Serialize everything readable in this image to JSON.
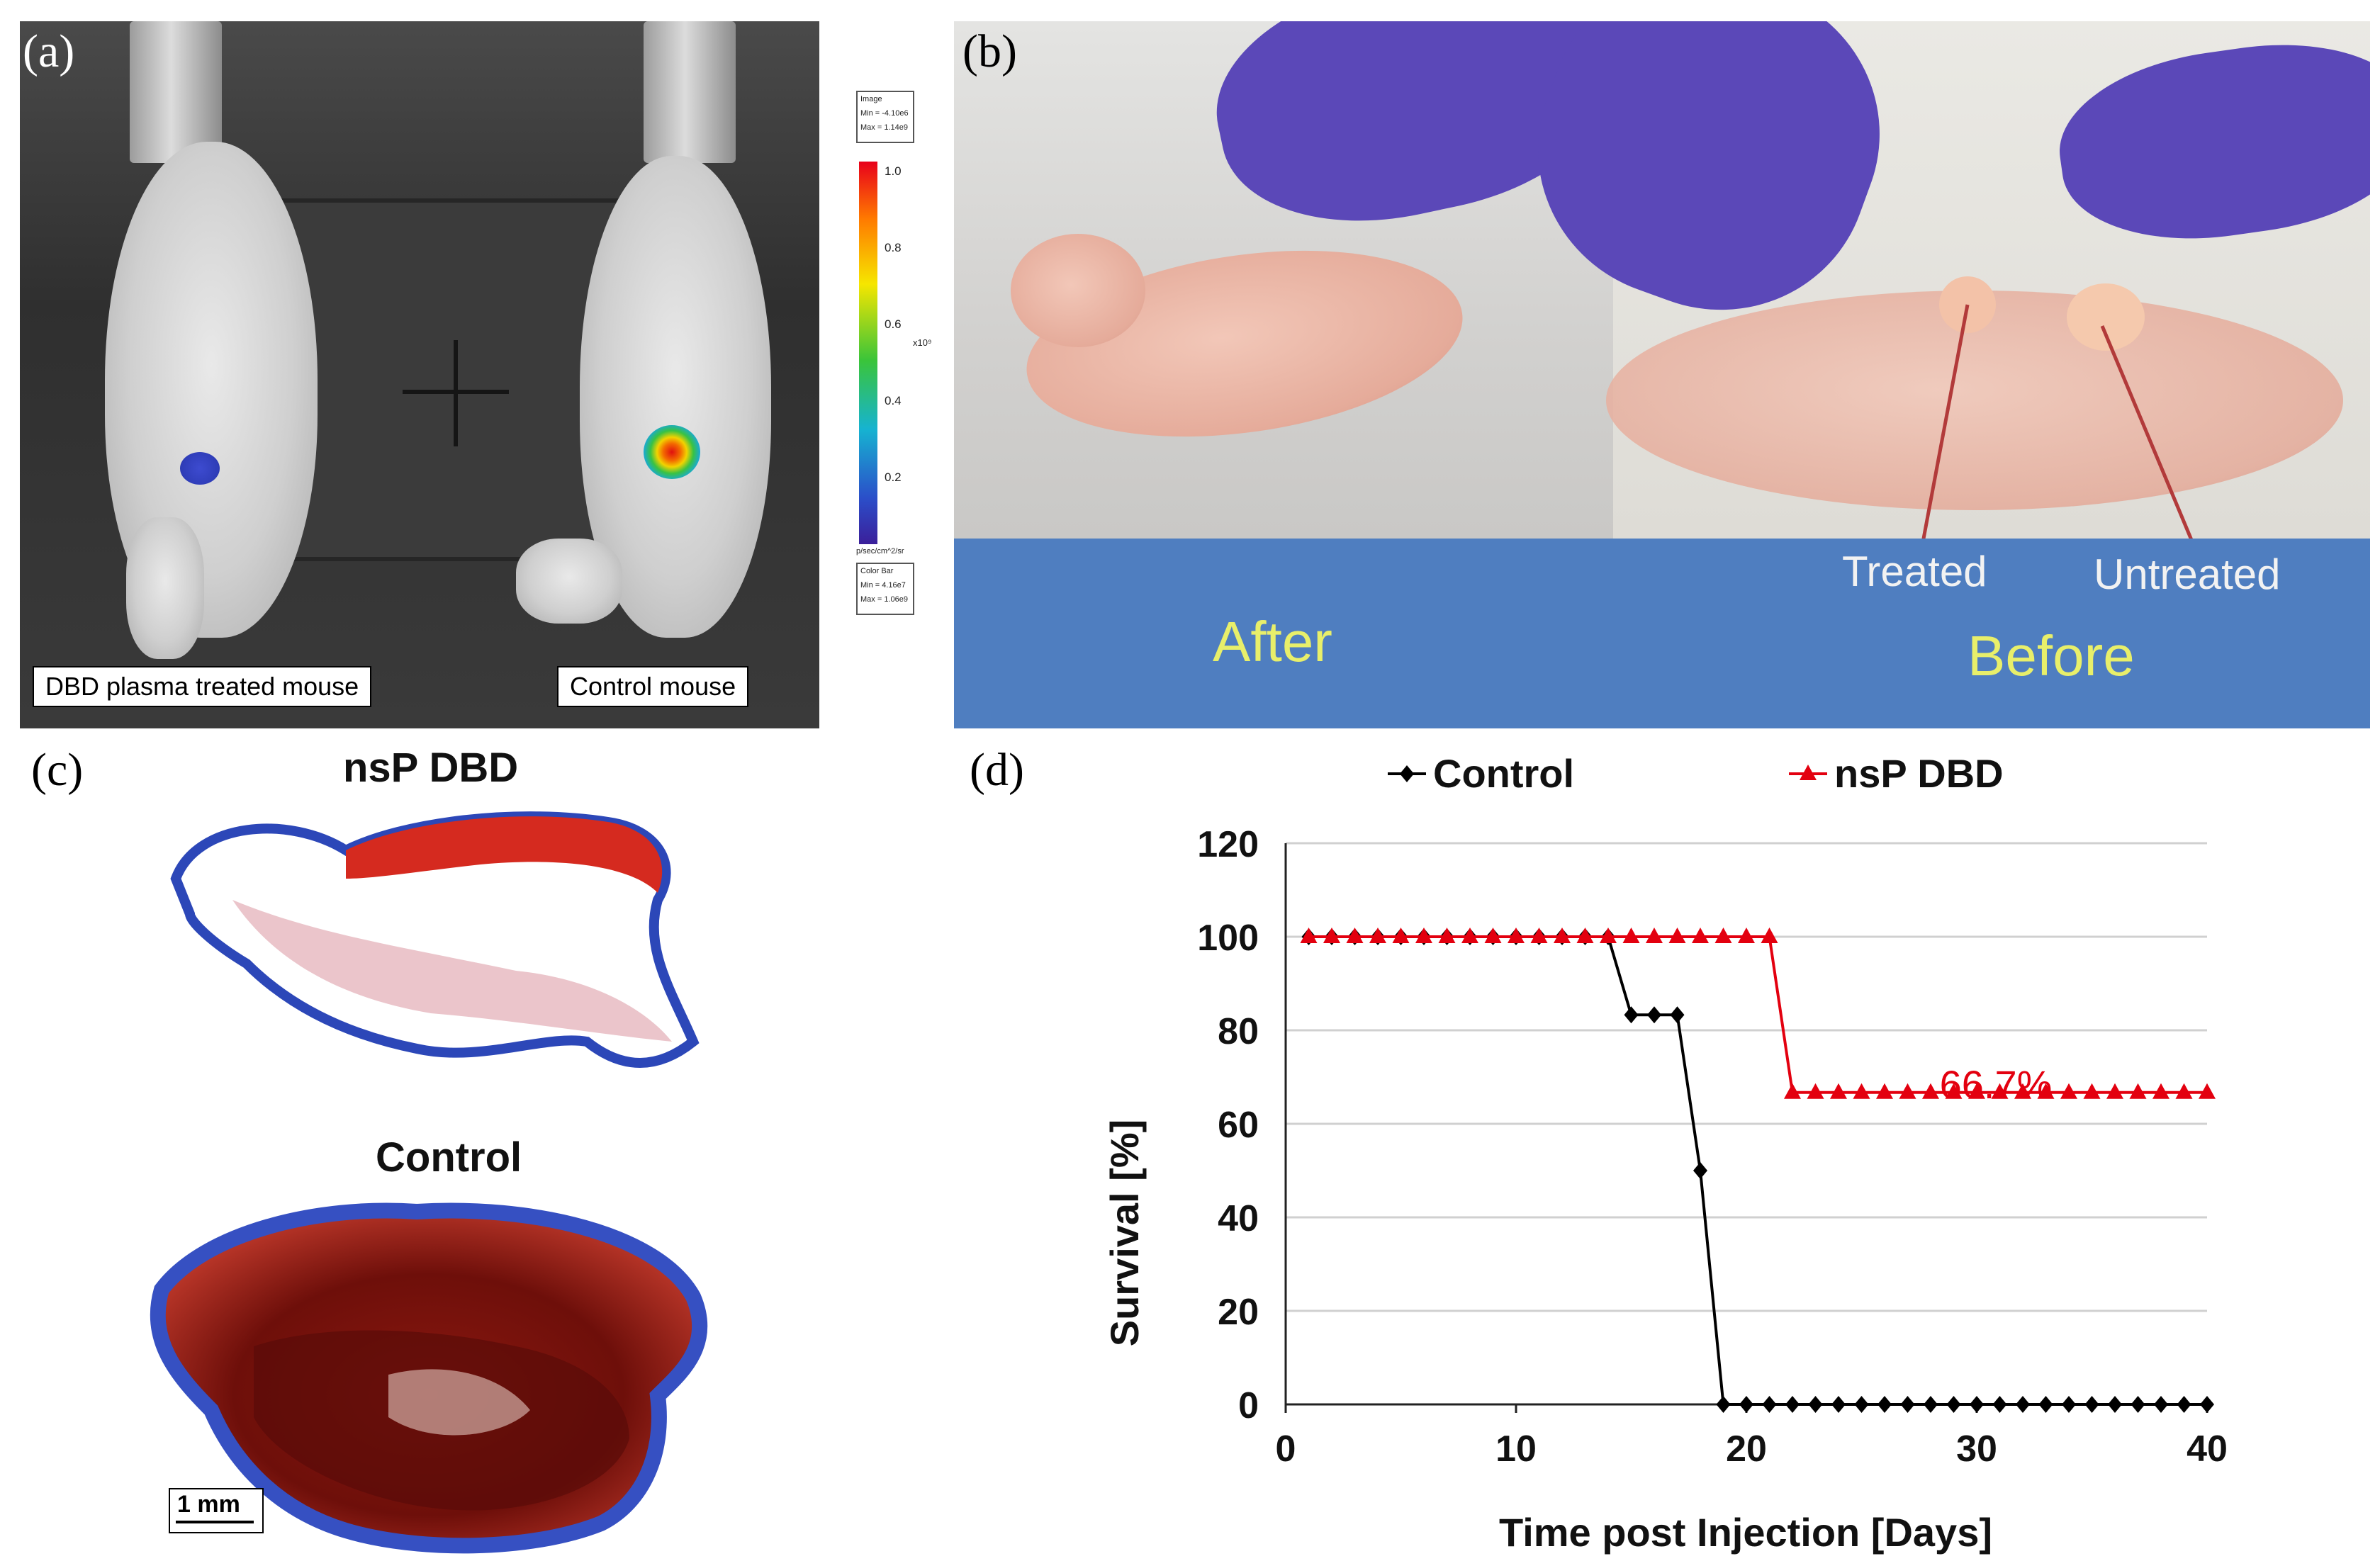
{
  "panels": {
    "a": {
      "letter": "(a)",
      "left_label": "DBD plasma treated mouse",
      "right_label": "Control mouse",
      "colorbar": {
        "ticks": [
          "1.0",
          "0.8",
          "0.6",
          "0.4",
          "0.2"
        ],
        "exponent": "x10⁹",
        "unit": "p/sec/cm^2/sr",
        "top_box": [
          "Image",
          "Min = -4.10e6",
          "Max = 1.14e9"
        ],
        "bottom_box": [
          "Color Bar",
          "Min = 4.16e7",
          "Max = 1.06e9"
        ]
      }
    },
    "b": {
      "letter": "(b)",
      "after": "After",
      "before": "Before",
      "treated": "Treated",
      "untreated": "Untreated"
    },
    "c": {
      "letter": "(c)",
      "top_title": "nsP DBD",
      "bottom_title": "Control",
      "scale": "1 mm"
    },
    "d": {
      "letter": "(d)",
      "annotation": "66.7%"
    }
  },
  "chart_data": {
    "type": "line",
    "xlabel": "Time post Injection [Days]",
    "ylabel": "Survival [%]",
    "xlim": [
      0,
      40
    ],
    "ylim": [
      0,
      120
    ],
    "xticks": [
      0,
      10,
      20,
      30,
      40
    ],
    "yticks": [
      0,
      20,
      40,
      60,
      80,
      100,
      120
    ],
    "grid": "horizontal",
    "legend": "top",
    "series": [
      {
        "name": "Control",
        "color": "#000000",
        "marker": "diamond",
        "x": [
          1,
          2,
          3,
          4,
          5,
          6,
          7,
          8,
          9,
          10,
          11,
          12,
          13,
          14,
          15,
          16,
          17,
          18,
          19,
          20,
          21,
          22,
          23,
          24,
          25,
          26,
          27,
          28,
          29,
          30,
          31,
          32,
          33,
          34,
          35,
          36,
          37,
          38,
          39,
          40
        ],
        "values": [
          100,
          100,
          100,
          100,
          100,
          100,
          100,
          100,
          100,
          100,
          100,
          100,
          100,
          100,
          83.3,
          83.3,
          83.3,
          50,
          0,
          0,
          0,
          0,
          0,
          0,
          0,
          0,
          0,
          0,
          0,
          0,
          0,
          0,
          0,
          0,
          0,
          0,
          0,
          0,
          0,
          0
        ]
      },
      {
        "name": "nsP DBD",
        "color": "#e3000f",
        "marker": "triangle",
        "x": [
          1,
          2,
          3,
          4,
          5,
          6,
          7,
          8,
          9,
          10,
          11,
          12,
          13,
          14,
          15,
          16,
          17,
          18,
          19,
          20,
          21,
          22,
          23,
          24,
          25,
          26,
          27,
          28,
          29,
          30,
          31,
          32,
          33,
          34,
          35,
          36,
          37,
          38,
          39,
          40
        ],
        "values": [
          100,
          100,
          100,
          100,
          100,
          100,
          100,
          100,
          100,
          100,
          100,
          100,
          100,
          100,
          100,
          100,
          100,
          100,
          100,
          100,
          100,
          66.7,
          66.7,
          66.7,
          66.7,
          66.7,
          66.7,
          66.7,
          66.7,
          66.7,
          66.7,
          66.7,
          66.7,
          66.7,
          66.7,
          66.7,
          66.7,
          66.7,
          66.7,
          66.7
        ]
      }
    ]
  }
}
